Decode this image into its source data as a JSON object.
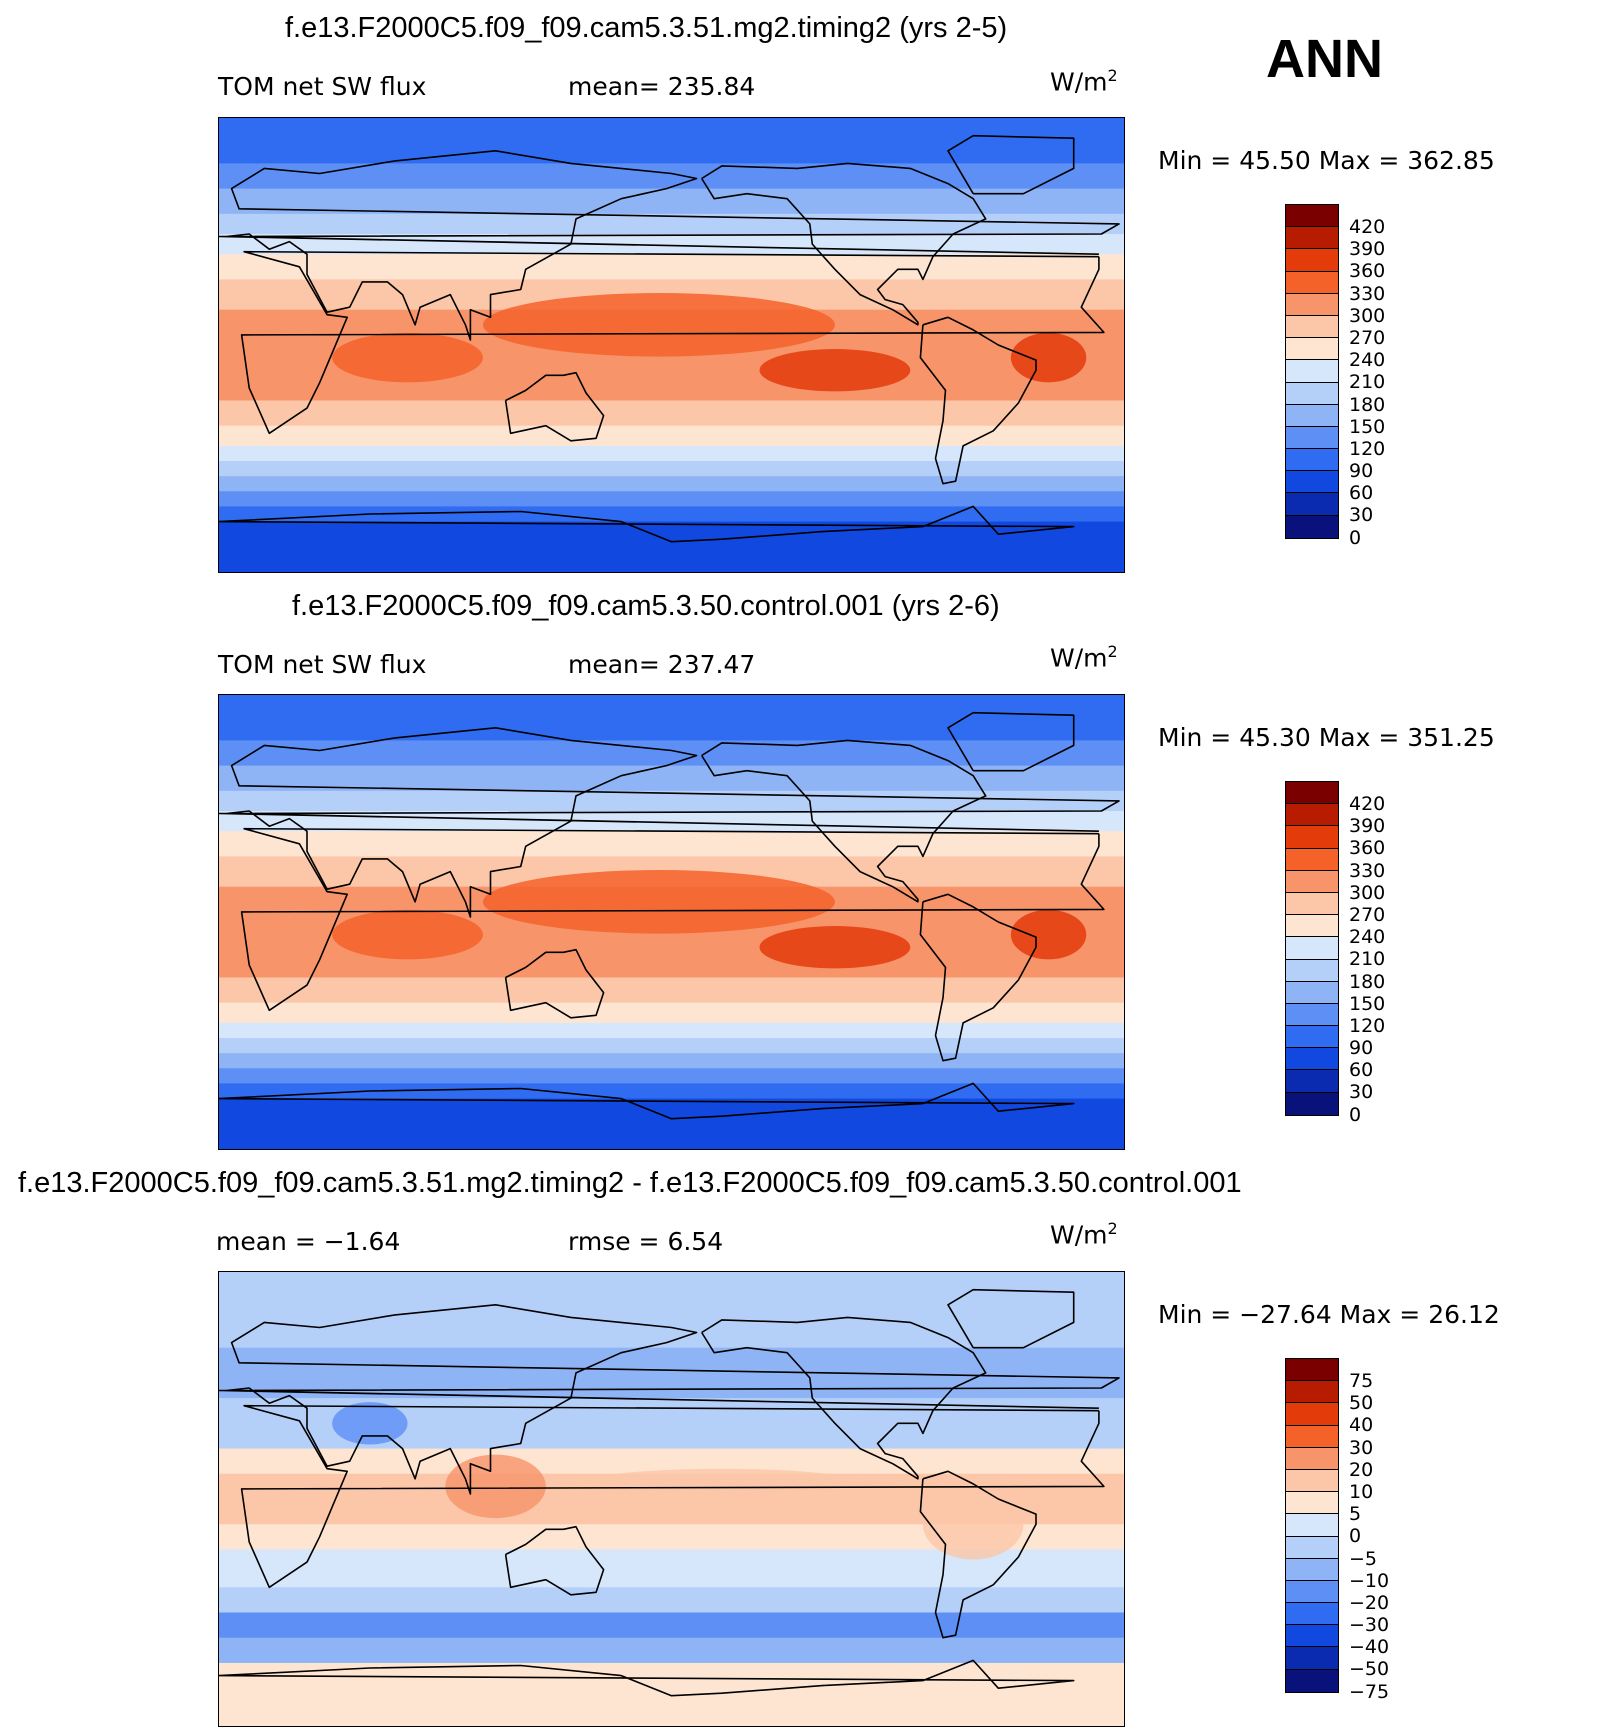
{
  "season": "ANN",
  "units_base": "W/m",
  "units_exp": "2",
  "panels": [
    {
      "title": "f.e13.F2000C5.f09_f09.cam5.3.51.mg2.timing2 (yrs 2-5)",
      "left_label": "TOM net SW flux",
      "mid_label": "mean= 235.84",
      "minmax": "Min =   45.50  Max  =  362.85",
      "scale": "abs",
      "ticks": [
        "420",
        "390",
        "360",
        "330",
        "300",
        "270",
        "240",
        "210",
        "180",
        "150",
        "120",
        "90",
        "60",
        "30",
        "0"
      ]
    },
    {
      "title": "f.e13.F2000C5.f09_f09.cam5.3.50.control.001 (yrs 2-6)",
      "left_label": "TOM net SW flux",
      "mid_label": "mean= 237.47",
      "minmax": "Min =   45.30  Max  =  351.25",
      "scale": "abs",
      "ticks": [
        "420",
        "390",
        "360",
        "330",
        "300",
        "270",
        "240",
        "210",
        "180",
        "150",
        "120",
        "90",
        "60",
        "30",
        "0"
      ]
    },
    {
      "title": "f.e13.F2000C5.f09_f09.cam5.3.51.mg2.timing2 - f.e13.F2000C5.f09_f09.cam5.3.50.control.001",
      "left_label": "mean =   −1.64",
      "mid_label": "rmse =    6.54",
      "minmax": "Min  = −27.64  Max  =    26.12",
      "scale": "diff",
      "ticks": [
        "75",
        "50",
        "40",
        "30",
        "20",
        "10",
        "5",
        "0",
        "−5",
        "−10",
        "−20",
        "−30",
        "−40",
        "−50",
        "−75"
      ]
    }
  ],
  "colors": {
    "colorbar": [
      "#7a0000",
      "#b81c00",
      "#e33b0a",
      "#f4622a",
      "#f8946a",
      "#fbc7a8",
      "#fde5d2",
      "#d6e6fb",
      "#b5d0f8",
      "#8fb4f6",
      "#5d8ff5",
      "#2f6cf2",
      "#1148e0",
      "#0a2bb0",
      "#08127a"
    ],
    "land_outline": "#000000"
  }
}
